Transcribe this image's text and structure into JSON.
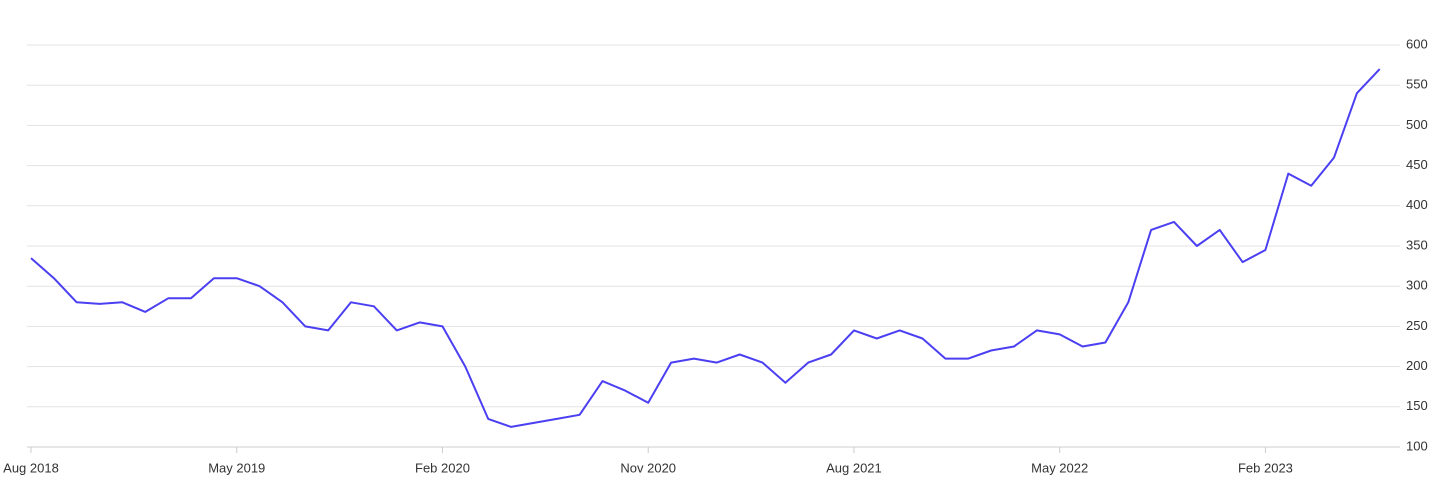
{
  "chart_data": {
    "type": "line",
    "x": [
      "2018-08",
      "2018-09",
      "2018-10",
      "2018-11",
      "2018-12",
      "2019-01",
      "2019-02",
      "2019-03",
      "2019-04",
      "2019-05",
      "2019-06",
      "2019-07",
      "2019-08",
      "2019-09",
      "2019-10",
      "2019-11",
      "2019-12",
      "2020-01",
      "2020-02",
      "2020-03",
      "2020-04",
      "2020-05",
      "2020-06",
      "2020-07",
      "2020-08",
      "2020-09",
      "2020-10",
      "2020-11",
      "2020-12",
      "2021-01",
      "2021-02",
      "2021-03",
      "2021-04",
      "2021-05",
      "2021-06",
      "2021-07",
      "2021-08",
      "2021-09",
      "2021-10",
      "2021-11",
      "2021-12",
      "2022-01",
      "2022-02",
      "2022-03",
      "2022-04",
      "2022-05",
      "2022-06",
      "2022-07",
      "2022-08",
      "2022-09",
      "2022-10",
      "2022-11",
      "2022-12",
      "2023-01",
      "2023-02",
      "2023-03",
      "2023-04",
      "2023-05",
      "2023-06",
      "2023-07"
    ],
    "series": [
      {
        "color": "#4b3ff2",
        "values": [
          335,
          310,
          280,
          278,
          280,
          268,
          285,
          285,
          310,
          310,
          300,
          280,
          250,
          245,
          280,
          275,
          245,
          255,
          250,
          200,
          135,
          125,
          130,
          135,
          140,
          182,
          170,
          155,
          205,
          210,
          205,
          215,
          205,
          180,
          205,
          215,
          245,
          235,
          245,
          235,
          210,
          210,
          220,
          225,
          245,
          240,
          225,
          230,
          280,
          370,
          380,
          350,
          370,
          330,
          345,
          440,
          425,
          460,
          540,
          570
        ]
      }
    ],
    "xticks": [
      {
        "value": "2018-08",
        "label": "Aug 2018"
      },
      {
        "value": "2019-05",
        "label": "May 2019"
      },
      {
        "value": "2020-02",
        "label": "Feb 2020"
      },
      {
        "value": "2020-11",
        "label": "Nov 2020"
      },
      {
        "value": "2021-08",
        "label": "Aug 2021"
      },
      {
        "value": "2022-05",
        "label": "May 2022"
      },
      {
        "value": "2023-02",
        "label": "Feb 2023"
      }
    ],
    "ylim": [
      100,
      600
    ],
    "yticks": [
      100,
      150,
      200,
      250,
      300,
      350,
      400,
      450,
      500,
      550,
      600
    ],
    "grid": true
  }
}
